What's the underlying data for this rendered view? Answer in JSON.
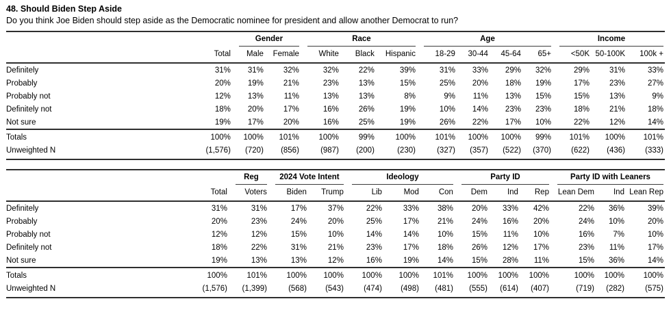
{
  "page": {
    "title": "48. Should Biden Step Aside",
    "subtitle": "Do you think Joe Biden should step aside as the Democratic nominee for president and allow another Democrat to run?"
  },
  "labels": {
    "totals": "Totals",
    "unweighted": "Unweighted N"
  },
  "tables": [
    {
      "name": "demographics",
      "groups": [
        {
          "label": "",
          "span": 1
        },
        {
          "label": "Gender",
          "span": 2
        },
        {
          "label": "Race",
          "span": 3
        },
        {
          "label": "Age",
          "span": 4
        },
        {
          "label": "Income",
          "span": 3
        }
      ],
      "columns": [
        "Total",
        "Male",
        "Female",
        "White",
        "Black",
        "Hispanic",
        "18-29",
        "30-44",
        "45-64",
        "65+",
        "<50K",
        "50-100K",
        "100k +"
      ],
      "rows": [
        {
          "label": "Definitely",
          "values": [
            "31%",
            "31%",
            "32%",
            "32%",
            "22%",
            "39%",
            "31%",
            "33%",
            "29%",
            "32%",
            "29%",
            "31%",
            "33%"
          ]
        },
        {
          "label": "Probably",
          "values": [
            "20%",
            "19%",
            "21%",
            "23%",
            "13%",
            "15%",
            "25%",
            "20%",
            "18%",
            "19%",
            "17%",
            "23%",
            "27%"
          ]
        },
        {
          "label": "Probably not",
          "values": [
            "12%",
            "13%",
            "11%",
            "13%",
            "13%",
            "8%",
            "9%",
            "11%",
            "13%",
            "15%",
            "15%",
            "13%",
            "9%"
          ]
        },
        {
          "label": "Definitely not",
          "values": [
            "18%",
            "20%",
            "17%",
            "16%",
            "26%",
            "19%",
            "10%",
            "14%",
            "23%",
            "23%",
            "18%",
            "21%",
            "18%"
          ]
        },
        {
          "label": "Not sure",
          "values": [
            "19%",
            "17%",
            "20%",
            "16%",
            "25%",
            "19%",
            "26%",
            "22%",
            "17%",
            "10%",
            "22%",
            "12%",
            "14%"
          ]
        }
      ],
      "totals": [
        "100%",
        "100%",
        "101%",
        "100%",
        "99%",
        "100%",
        "101%",
        "100%",
        "100%",
        "99%",
        "101%",
        "100%",
        "101%"
      ],
      "unweighted": [
        "(1,576)",
        "(720)",
        "(856)",
        "(987)",
        "(200)",
        "(230)",
        "(327)",
        "(357)",
        "(522)",
        "(370)",
        "(622)",
        "(436)",
        "(333)"
      ]
    },
    {
      "name": "politics",
      "groups": [
        {
          "label": "",
          "span": 1
        },
        {
          "label": "Reg",
          "span": 1
        },
        {
          "label": "2024 Vote Intent",
          "span": 2
        },
        {
          "label": "Ideology",
          "span": 3
        },
        {
          "label": "Party ID",
          "span": 3
        },
        {
          "label": "Party ID with Leaners",
          "span": 3
        }
      ],
      "columns": [
        "Total",
        "Voters",
        "Biden",
        "Trump",
        "Lib",
        "Mod",
        "Con",
        "Dem",
        "Ind",
        "Rep",
        "Lean Dem",
        "Ind",
        "Lean Rep"
      ],
      "rows": [
        {
          "label": "Definitely",
          "values": [
            "31%",
            "31%",
            "17%",
            "37%",
            "22%",
            "33%",
            "38%",
            "20%",
            "33%",
            "42%",
            "22%",
            "36%",
            "39%"
          ]
        },
        {
          "label": "Probably",
          "values": [
            "20%",
            "23%",
            "24%",
            "20%",
            "25%",
            "17%",
            "21%",
            "24%",
            "16%",
            "20%",
            "24%",
            "10%",
            "20%"
          ]
        },
        {
          "label": "Probably not",
          "values": [
            "12%",
            "12%",
            "15%",
            "10%",
            "14%",
            "14%",
            "10%",
            "15%",
            "11%",
            "10%",
            "16%",
            "7%",
            "10%"
          ]
        },
        {
          "label": "Definitely not",
          "values": [
            "18%",
            "22%",
            "31%",
            "21%",
            "23%",
            "17%",
            "18%",
            "26%",
            "12%",
            "17%",
            "23%",
            "11%",
            "17%"
          ]
        },
        {
          "label": "Not sure",
          "values": [
            "19%",
            "13%",
            "13%",
            "12%",
            "16%",
            "19%",
            "14%",
            "15%",
            "28%",
            "11%",
            "15%",
            "36%",
            "14%"
          ]
        }
      ],
      "totals": [
        "100%",
        "101%",
        "100%",
        "100%",
        "100%",
        "100%",
        "101%",
        "100%",
        "100%",
        "100%",
        "100%",
        "100%",
        "100%"
      ],
      "unweighted": [
        "(1,576)",
        "(1,399)",
        "(568)",
        "(543)",
        "(474)",
        "(498)",
        "(481)",
        "(555)",
        "(614)",
        "(407)",
        "(719)",
        "(282)",
        "(575)"
      ]
    }
  ]
}
